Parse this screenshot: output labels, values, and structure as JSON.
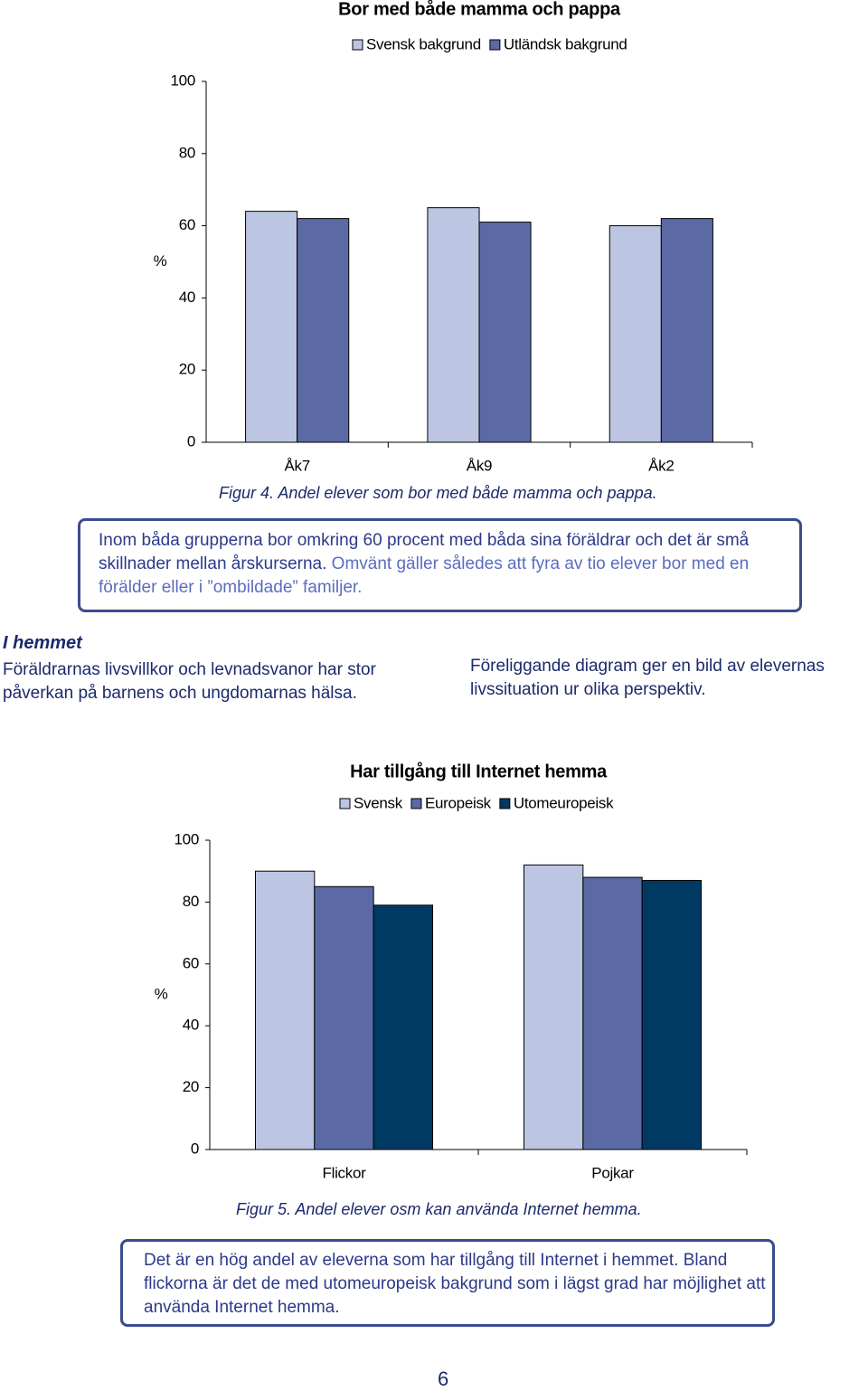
{
  "chart_data": [
    {
      "type": "bar",
      "title": "Bor med både mamma och pappa",
      "y_label": "%",
      "categories": [
        "Åk7",
        "Åk9",
        "Åk2"
      ],
      "series": [
        {
          "name": "Svensk bakgrund",
          "color": "#bcc6e3",
          "values": [
            64,
            65,
            60
          ]
        },
        {
          "name": "Utländsk bakgrund",
          "color": "#5b6aa5",
          "values": [
            62,
            61,
            62
          ]
        }
      ],
      "ylim": [
        0,
        100
      ],
      "yticks": [
        0,
        20,
        40,
        60,
        80,
        100
      ],
      "grid": false,
      "legend": "top"
    },
    {
      "type": "bar",
      "title": "Har tillgång till Internet hemma",
      "y_label": "%",
      "categories": [
        "Flickor",
        "Pojkar"
      ],
      "series": [
        {
          "name": "Svensk",
          "color": "#bcc6e3",
          "values": [
            90,
            92
          ]
        },
        {
          "name": "Europeisk",
          "color": "#5b6aa5",
          "values": [
            85,
            88
          ]
        },
        {
          "name": "Utomeuropeisk",
          "color": "#003a63",
          "values": [
            79,
            87
          ]
        }
      ],
      "ylim": [
        0,
        100
      ],
      "yticks": [
        0,
        20,
        40,
        60,
        80,
        100
      ],
      "grid": false,
      "legend": "top"
    }
  ],
  "captions": [
    "Figur 4. Andel elever som bor med både mamma och pappa.",
    "Figur 5. Andel elever osm kan använda Internet hemma."
  ],
  "boxes": [
    {
      "sentences": [
        "Inom båda grupperna bor omkring 60 procent med båda sina föräldrar och det är små skillnader mellan årskurserna.",
        "Omvänt gäller således att fyra av tio elever bor med en förälder eller i ”ombildade” familjer."
      ]
    },
    {
      "sentences": [
        "Det är en hög andel av eleverna som har tillgång till Internet i hemmet. Bland flickorna är det de med utomeuropeisk bakgrund som i lägst grad har möjlighet att använda Internet hemma."
      ]
    }
  ],
  "section": {
    "heading": "I hemmet",
    "left": "Föräldrarnas livsvillkor och levnadsvanor har stor påverkan på barnens och ungdomarnas hälsa.",
    "right": "Föreliggande diagram ger en bild av elevernas livssituation ur olika perspektiv."
  },
  "page_number": "6"
}
